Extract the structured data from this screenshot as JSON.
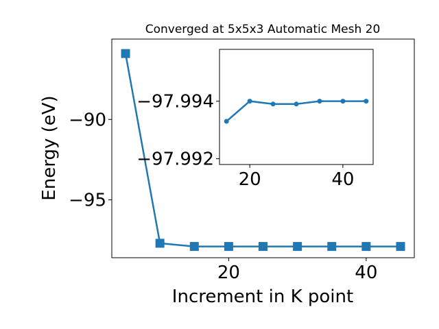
{
  "chart_data": [
    {
      "type": "line",
      "title": "Converged at 5x5x3 Automatic Mesh 20",
      "xlabel": "Increment in K point",
      "ylabel": "Energy (eV)",
      "x": [
        5,
        10,
        15,
        20,
        25,
        30,
        35,
        40,
        45
      ],
      "series": [
        {
          "values": [
            -85.9,
            -97.7,
            -97.9,
            -97.9,
            -97.9,
            -97.9,
            -97.9,
            -97.9,
            -97.9
          ],
          "marker": "square"
        }
      ],
      "xlim": [
        3.0,
        47.0
      ],
      "ylim": [
        -98.6,
        -85.0
      ],
      "xticks": [
        20,
        40
      ],
      "xtick_labels": [
        "20",
        "40"
      ],
      "yticks": [
        -90,
        -95
      ],
      "ytick_labels": [
        "−90",
        "−95"
      ],
      "grid": false,
      "legend": "none"
    },
    {
      "type": "line",
      "title": "",
      "xlabel": "",
      "ylabel": "",
      "x": [
        15,
        20,
        25,
        30,
        35,
        40,
        45
      ],
      "series": [
        {
          "values": [
            -97.9933,
            -97.994,
            -97.9939,
            -97.9939,
            -97.994,
            -97.994,
            -97.994
          ],
          "marker": "circle"
        }
      ],
      "xlim": [
        13.5,
        46.5
      ],
      "ylim": [
        -97.9918,
        -97.9958
      ],
      "xticks": [
        20,
        40
      ],
      "xtick_labels": [
        "20",
        "40"
      ],
      "yticks": [
        -97.994,
        -97.992
      ],
      "ytick_labels": [
        "−97.994",
        "−97.992"
      ],
      "grid": false,
      "legend": "none"
    }
  ],
  "colors": {
    "series": "#1f77b4",
    "axes": "#000000",
    "background": "#ffffff"
  }
}
